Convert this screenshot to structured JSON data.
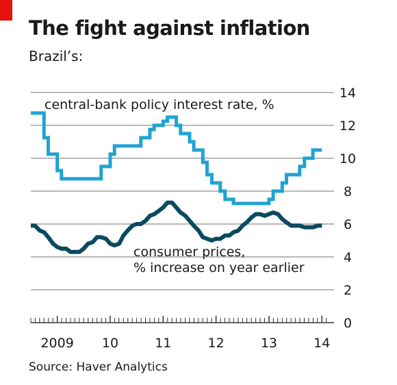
{
  "header": {
    "title": "The fight against inflation",
    "subtitle": "Brazil’s:"
  },
  "footer": {
    "source": "Source: Haver Analytics"
  },
  "colors": {
    "accent_red": "#e3120b",
    "policy_rate": "#1fa3d3",
    "consumer_prices": "#0a4a5e",
    "grid": "#b8b8b8",
    "axis": "#333333"
  },
  "chart_data": {
    "type": "line",
    "ylim": [
      0,
      14
    ],
    "yticks": [
      0,
      2,
      4,
      6,
      8,
      10,
      12,
      14
    ],
    "grid": true,
    "y_axis_side": "right",
    "xlim": [
      2008.5,
      2014.1
    ],
    "xticks": [
      {
        "label": "2009",
        "x": 2009.0
      },
      {
        "label": "10",
        "x": 2010.0
      },
      {
        "label": "11",
        "x": 2011.0
      },
      {
        "label": "12",
        "x": 2012.0
      },
      {
        "label": "13",
        "x": 2013.0
      },
      {
        "label": "14",
        "x": 2014.0
      }
    ],
    "series": [
      {
        "key": "policy",
        "step": true,
        "annotation": "central-bank policy interest rate, %",
        "x": [
          2008.5,
          2008.67,
          2008.75,
          2008.83,
          2008.92,
          2009.0,
          2009.08,
          2009.17,
          2009.25,
          2009.33,
          2009.42,
          2009.5,
          2009.58,
          2009.67,
          2009.75,
          2009.83,
          2009.92,
          2010.0,
          2010.08,
          2010.17,
          2010.25,
          2010.33,
          2010.42,
          2010.5,
          2010.58,
          2010.67,
          2010.75,
          2010.83,
          2010.92,
          2011.0,
          2011.08,
          2011.17,
          2011.25,
          2011.33,
          2011.42,
          2011.5,
          2011.58,
          2011.67,
          2011.75,
          2011.83,
          2011.92,
          2012.0,
          2012.08,
          2012.17,
          2012.25,
          2012.33,
          2012.42,
          2012.5,
          2012.58,
          2012.67,
          2012.75,
          2012.83,
          2012.92,
          2013.0,
          2013.08,
          2013.17,
          2013.25,
          2013.33,
          2013.42,
          2013.5,
          2013.58,
          2013.67,
          2013.75,
          2013.83,
          2013.92,
          2014.0
        ],
        "values": [
          12.75,
          12.75,
          11.25,
          10.25,
          10.25,
          9.25,
          8.75,
          8.75,
          8.75,
          8.75,
          8.75,
          8.75,
          8.75,
          8.75,
          8.75,
          9.5,
          9.5,
          10.25,
          10.75,
          10.75,
          10.75,
          10.75,
          10.75,
          10.75,
          11.25,
          11.25,
          11.75,
          12.0,
          12.0,
          12.25,
          12.5,
          12.5,
          12.0,
          11.5,
          11.5,
          11.0,
          10.5,
          10.5,
          9.75,
          9.0,
          8.5,
          8.5,
          8.0,
          7.5,
          7.5,
          7.25,
          7.25,
          7.25,
          7.25,
          7.25,
          7.25,
          7.25,
          7.25,
          7.5,
          8.0,
          8.0,
          8.5,
          9.0,
          9.0,
          9.0,
          9.5,
          10.0,
          10.0,
          10.5,
          10.5,
          10.5
        ]
      },
      {
        "key": "cpi",
        "step": false,
        "annotation": [
          "consumer prices,",
          "% increase on year earlier"
        ],
        "x": [
          2008.5,
          2008.58,
          2008.67,
          2008.75,
          2008.83,
          2008.92,
          2009.0,
          2009.08,
          2009.17,
          2009.25,
          2009.33,
          2009.42,
          2009.5,
          2009.58,
          2009.67,
          2009.75,
          2009.83,
          2009.92,
          2010.0,
          2010.08,
          2010.17,
          2010.25,
          2010.33,
          2010.42,
          2010.5,
          2010.58,
          2010.67,
          2010.75,
          2010.83,
          2010.92,
          2011.0,
          2011.08,
          2011.17,
          2011.25,
          2011.33,
          2011.42,
          2011.5,
          2011.58,
          2011.67,
          2011.75,
          2011.83,
          2011.92,
          2012.0,
          2012.08,
          2012.17,
          2012.25,
          2012.33,
          2012.42,
          2012.5,
          2012.58,
          2012.67,
          2012.75,
          2012.83,
          2012.92,
          2013.0,
          2013.08,
          2013.17,
          2013.25,
          2013.33,
          2013.42,
          2013.5,
          2013.58,
          2013.67,
          2013.75,
          2013.83,
          2013.92,
          2014.0
        ],
        "values": [
          5.9,
          5.9,
          5.6,
          5.5,
          5.2,
          4.8,
          4.6,
          4.5,
          4.5,
          4.3,
          4.3,
          4.3,
          4.5,
          4.8,
          4.9,
          5.2,
          5.2,
          5.1,
          4.8,
          4.7,
          4.8,
          5.3,
          5.6,
          5.9,
          6.0,
          6.0,
          6.2,
          6.5,
          6.6,
          6.8,
          7.0,
          7.3,
          7.3,
          7.0,
          6.7,
          6.5,
          6.2,
          5.9,
          5.6,
          5.2,
          5.1,
          5.0,
          5.1,
          5.1,
          5.3,
          5.3,
          5.5,
          5.6,
          5.9,
          6.1,
          6.4,
          6.6,
          6.6,
          6.5,
          6.6,
          6.7,
          6.6,
          6.3,
          6.1,
          5.9,
          5.9,
          5.9,
          5.8,
          5.8,
          5.8,
          5.9,
          5.9
        ]
      }
    ]
  }
}
